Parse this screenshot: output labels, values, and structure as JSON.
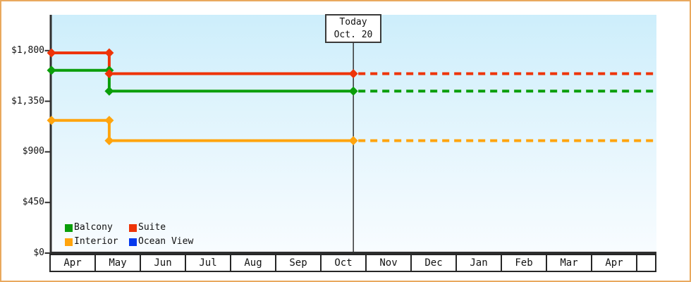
{
  "frame": {
    "border_color": "#e9a95e",
    "background": "#ffffff"
  },
  "today_box": {
    "line1": "Today",
    "line2": "Oct. 20"
  },
  "y_axis": {
    "labels": [
      "$1,800",
      "$1,350",
      "$900",
      "$450",
      "$0"
    ],
    "values": [
      1800,
      1350,
      900,
      450,
      0
    ]
  },
  "x_axis": {
    "months": [
      "Apr",
      "May",
      "Jun",
      "Jul",
      "Aug",
      "Sep",
      "Oct",
      "Nov",
      "Dec",
      "Jan",
      "Feb",
      "Mar",
      "Apr"
    ]
  },
  "legend": {
    "items": [
      {
        "label": "Balcony",
        "color": "#0a9e0a"
      },
      {
        "label": "Suite",
        "color": "#ee3408"
      },
      {
        "label": "Interior",
        "color": "#ffa40d"
      },
      {
        "label": "Ocean View",
        "color": "#0439ee"
      }
    ]
  },
  "chart_data": {
    "type": "line",
    "title": "",
    "x_categories": [
      "Apr",
      "May",
      "Jun",
      "Jul",
      "Aug",
      "Sep",
      "Oct",
      "Nov",
      "Dec",
      "Jan",
      "Feb",
      "Mar",
      "Apr"
    ],
    "y_ticks": [
      0,
      450,
      900,
      1350,
      1800
    ],
    "y_tick_labels": [
      "$0",
      "$450",
      "$900",
      "$1,350",
      "$1,800"
    ],
    "ylim": [
      0,
      2100
    ],
    "grid": false,
    "legend_position": "bottom-left",
    "plot_bg_gradient": [
      "#cdeefb",
      "#f7fcff"
    ],
    "today_marker": {
      "label_line1": "Today",
      "label_line2": "Oct. 20",
      "month_index": 6,
      "month_fraction": 0.69
    },
    "x_end_month_position": 13.4,
    "series": [
      {
        "name": "Balcony",
        "color": "#0a9e0a",
        "z": 2,
        "visible": true,
        "price_initial": 1625,
        "price_current": 1440,
        "solid_points": [
          [
            0,
            1625
          ],
          [
            1.28,
            1625
          ],
          [
            1.28,
            1440
          ],
          [
            6.69,
            1440
          ]
        ],
        "dashed_points": [
          [
            6.69,
            1440
          ],
          [
            13.4,
            1440
          ]
        ],
        "marker_points": [
          [
            0,
            1625
          ],
          [
            1.28,
            1625
          ],
          [
            1.28,
            1440
          ],
          [
            6.69,
            1440
          ]
        ]
      },
      {
        "name": "Suite",
        "color": "#ee3408",
        "z": 3,
        "visible": true,
        "price_initial": 1780,
        "price_current": 1595,
        "solid_points": [
          [
            0,
            1780
          ],
          [
            1.28,
            1780
          ],
          [
            1.28,
            1595
          ],
          [
            6.69,
            1595
          ]
        ],
        "dashed_points": [
          [
            6.69,
            1595
          ],
          [
            13.4,
            1595
          ]
        ],
        "marker_points": [
          [
            0,
            1780
          ],
          [
            1.28,
            1780
          ],
          [
            1.28,
            1595
          ],
          [
            6.69,
            1595
          ]
        ]
      },
      {
        "name": "Interior",
        "color": "#ffa40d",
        "z": 1,
        "visible": true,
        "price_initial": 1180,
        "price_current": 1000,
        "solid_points": [
          [
            0,
            1180
          ],
          [
            1.28,
            1180
          ],
          [
            1.28,
            1000
          ],
          [
            6.69,
            1000
          ]
        ],
        "dashed_points": [
          [
            6.69,
            1000
          ],
          [
            13.4,
            1000
          ]
        ],
        "marker_points": [
          [
            0,
            1180
          ],
          [
            1.28,
            1180
          ],
          [
            1.28,
            1000
          ],
          [
            6.69,
            1000
          ]
        ]
      },
      {
        "name": "Ocean View",
        "color": "#0439ee",
        "z": 0,
        "visible": false,
        "price_initial": null,
        "price_current": null,
        "solid_points": [],
        "dashed_points": [],
        "marker_points": []
      }
    ]
  }
}
